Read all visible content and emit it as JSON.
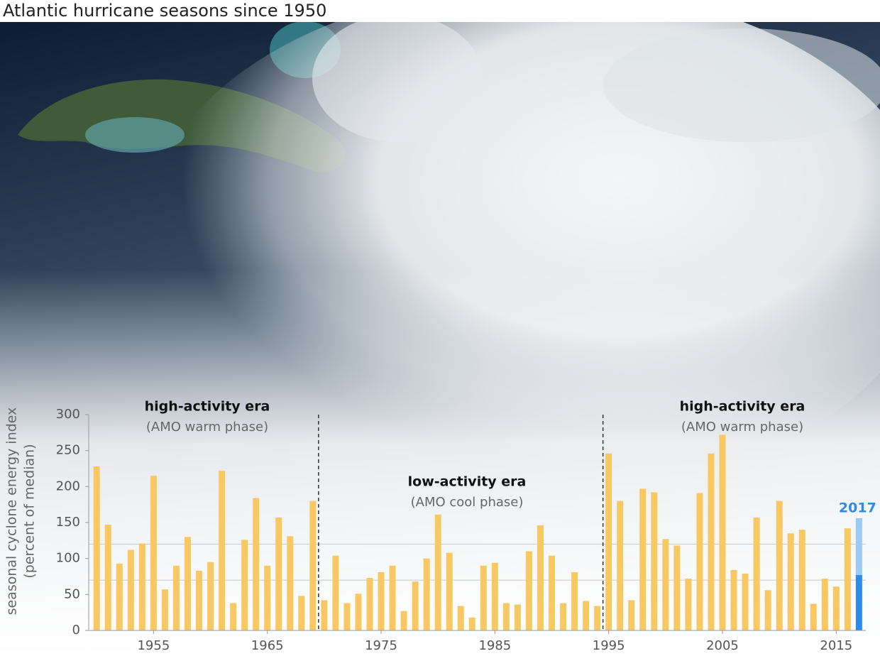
{
  "chart_data": {
    "type": "bar",
    "title": "Atlantic hurricane seasons since 1950",
    "y_label": "seasonal cyclone energy index",
    "y_sublabel": "(percent of median)",
    "x": [
      1950,
      1951,
      1952,
      1953,
      1954,
      1955,
      1956,
      1957,
      1958,
      1959,
      1960,
      1961,
      1962,
      1963,
      1964,
      1965,
      1966,
      1967,
      1968,
      1969,
      1970,
      1971,
      1972,
      1973,
      1974,
      1975,
      1976,
      1977,
      1978,
      1979,
      1980,
      1981,
      1982,
      1983,
      1984,
      1985,
      1986,
      1987,
      1988,
      1989,
      1990,
      1991,
      1992,
      1993,
      1994,
      1995,
      1996,
      1997,
      1998,
      1999,
      2000,
      2001,
      2002,
      2003,
      2004,
      2005,
      2006,
      2007,
      2008,
      2009,
      2010,
      2011,
      2012,
      2013,
      2014,
      2015,
      2016
    ],
    "values": [
      228,
      147,
      93,
      112,
      121,
      215,
      57,
      90,
      130,
      83,
      95,
      222,
      38,
      126,
      184,
      90,
      157,
      131,
      48,
      180,
      42,
      104,
      38,
      51,
      73,
      81,
      90,
      27,
      68,
      100,
      161,
      108,
      34,
      18,
      90,
      94,
      38,
      36,
      110,
      146,
      104,
      38,
      81,
      41,
      34,
      246,
      180,
      42,
      197,
      192,
      127,
      118,
      72,
      191,
      246,
      272,
      84,
      79,
      157,
      56,
      180,
      135,
      140,
      37,
      72,
      61,
      142
    ],
    "color": "#f9c863",
    "highlight": {
      "label": "2017",
      "x": 2017,
      "values": [
        77,
        79
      ],
      "colors": [
        "#2e8ce6",
        "#9ccbf2"
      ]
    },
    "reference_lines": [
      70,
      120
    ],
    "dividers": [
      1969.5,
      1994.5
    ],
    "annotations": [
      {
        "title": "high-activity era",
        "subtitle": "(AMO warm phase)"
      },
      {
        "title": "low-activity era",
        "subtitle": "(AMO cool phase)"
      },
      {
        "title": "high-activity era",
        "subtitle": "(AMO warm phase)"
      }
    ],
    "xlim": [
      1949.3,
      2017.6
    ],
    "xticks": [
      1955,
      1965,
      1975,
      1985,
      1995,
      2005,
      2015
    ],
    "ylim": [
      0,
      300
    ],
    "yticks": [
      0,
      50,
      100,
      150,
      200,
      250,
      300
    ]
  }
}
